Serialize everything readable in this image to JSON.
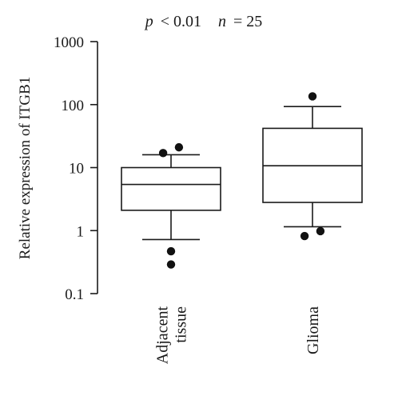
{
  "chart_data": {
    "type": "box",
    "annotation": {
      "p_symbol": "p",
      "p_rel": "< 0.01",
      "n_symbol": "n",
      "n_rel": "= 25"
    },
    "ylabel": "Relative expression of ITGB1",
    "yscale": "log",
    "ylim": [
      0.1,
      1000
    ],
    "yticks": [
      {
        "value": 0.1,
        "label": "0.1"
      },
      {
        "value": 1,
        "label": "1"
      },
      {
        "value": 10,
        "label": "10"
      },
      {
        "value": 100,
        "label": "100"
      },
      {
        "value": 1000,
        "label": "1000"
      }
    ],
    "categories": [
      "Adjacent tissue",
      "Glioma"
    ],
    "category_label_lines": [
      [
        "Adjacent",
        "tissue"
      ],
      [
        "Glioma"
      ]
    ],
    "boxes": [
      {
        "category": "Adjacent tissue",
        "whisker_low": 0.72,
        "q1": 2.1,
        "median": 5.4,
        "q3": 10.0,
        "whisker_high": 16.0,
        "outliers": [
          {
            "value": 17,
            "offset": -0.18
          },
          {
            "value": 21,
            "offset": 0.18
          },
          {
            "value": 0.47,
            "offset": 0
          },
          {
            "value": 0.29,
            "offset": 0
          }
        ]
      },
      {
        "category": "Glioma",
        "whisker_low": 1.15,
        "q1": 2.8,
        "median": 10.7,
        "q3": 42.0,
        "whisker_high": 93.0,
        "outliers": [
          {
            "value": 135,
            "offset": 0
          },
          {
            "value": 0.82,
            "offset": -0.18
          },
          {
            "value": 0.98,
            "offset": 0.18
          }
        ]
      }
    ]
  }
}
